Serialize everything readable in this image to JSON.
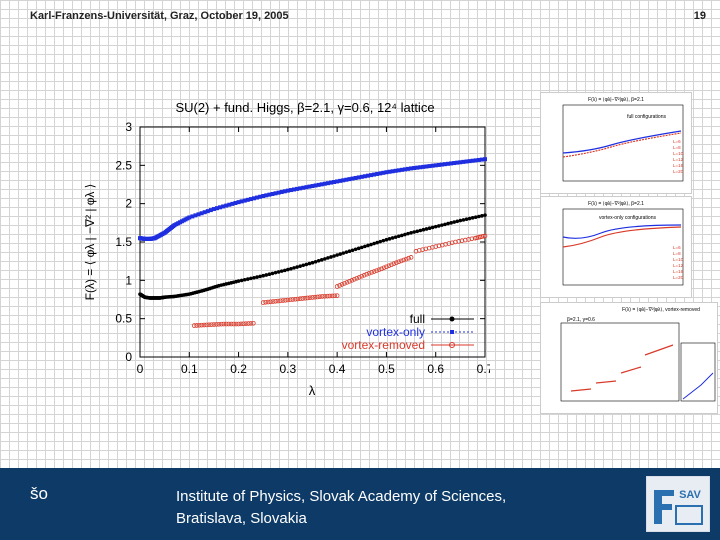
{
  "header": {
    "left": "Karl-Franzens-Universität, Graz, October 19, 2005",
    "page_number": "19"
  },
  "footer": {
    "left": "šo",
    "institute_line1": "Institute of Physics, Slovak Academy of Sciences,",
    "institute_line2": "Bratislava, Slovakia",
    "logo_text": "SAV"
  },
  "colors": {
    "full": "#000000",
    "vortex_only": "#1f2fe0",
    "vortex_removed": "#d93a2a",
    "footer": "#0d3a66"
  },
  "chart_data": {
    "type": "scatter",
    "title": "SU(2) + fund. Higgs, β=2.1, γ=0.6, 12⁴ lattice",
    "xlabel": "λ",
    "ylabel": "F(λ) = ⟨ φλ | −∇² | φλ ⟩",
    "xlim": [
      0,
      0.7
    ],
    "ylim": [
      0,
      3
    ],
    "xticks": [
      "0",
      "0.1",
      "0.2",
      "0.3",
      "0.4",
      "0.5",
      "0.6",
      "0.7"
    ],
    "yticks": [
      "0",
      "0.5",
      "1",
      "1.5",
      "2",
      "2.5",
      "3"
    ],
    "legend_position": "bottom-right",
    "series": [
      {
        "name": "full",
        "x": [
          0.0,
          0.005,
          0.01,
          0.02,
          0.03,
          0.04,
          0.05,
          0.07,
          0.1,
          0.13,
          0.16,
          0.2,
          0.25,
          0.3,
          0.35,
          0.4,
          0.45,
          0.5,
          0.55,
          0.6,
          0.65,
          0.7
        ],
        "values": [
          0.82,
          0.8,
          0.78,
          0.77,
          0.77,
          0.77,
          0.78,
          0.79,
          0.82,
          0.87,
          0.93,
          0.99,
          1.06,
          1.14,
          1.23,
          1.33,
          1.43,
          1.53,
          1.62,
          1.7,
          1.78,
          1.85
        ]
      },
      {
        "name": "vortex-only",
        "x": [
          0.0,
          0.01,
          0.02,
          0.03,
          0.05,
          0.07,
          0.1,
          0.15,
          0.2,
          0.25,
          0.3,
          0.35,
          0.4,
          0.45,
          0.5,
          0.55,
          0.6,
          0.65,
          0.7
        ],
        "values": [
          1.55,
          1.54,
          1.54,
          1.55,
          1.62,
          1.72,
          1.82,
          1.93,
          2.02,
          2.1,
          2.17,
          2.23,
          2.29,
          2.35,
          2.41,
          2.46,
          2.5,
          2.54,
          2.58
        ]
      },
      {
        "name": "vortex-removed",
        "segments": [
          {
            "x": [
              0.11,
              0.14,
              0.17,
              0.2,
              0.23
            ],
            "values": [
              0.41,
              0.42,
              0.43,
              0.43,
              0.44
            ]
          },
          {
            "x": [
              0.25,
              0.28,
              0.31,
              0.34,
              0.37,
              0.4
            ],
            "values": [
              0.71,
              0.73,
              0.75,
              0.77,
              0.79,
              0.8
            ]
          },
          {
            "x": [
              0.4,
              0.43,
              0.46,
              0.49,
              0.52,
              0.55
            ],
            "values": [
              0.92,
              1.0,
              1.08,
              1.15,
              1.23,
              1.3
            ]
          },
          {
            "x": [
              0.56,
              0.6,
              0.64,
              0.68,
              0.7
            ],
            "values": [
              1.38,
              1.44,
              1.5,
              1.55,
              1.58
            ]
          }
        ]
      }
    ]
  },
  "thumbnails": {
    "top": {
      "title": "F(λ) = ⟨φλ|−∇²|φλ⟩, β=2.1",
      "label": "full configurations",
      "legend": [
        "L=6",
        "L=8",
        "L=10",
        "L=12",
        "L=16",
        "L=20"
      ]
    },
    "middle": {
      "title": "F(λ) = ⟨φλ|−∇²|φλ⟩, β=2.1",
      "label": "vortex-only configurations",
      "legend": [
        "L=6",
        "L=8",
        "L=10",
        "L=12",
        "L=16",
        "L=20"
      ]
    },
    "bottom_title": "F(λ) = ⟨φλ|−∇²|φλ⟩, vortex-removed",
    "bottom_left_title": "β=2.1, γ=0.6"
  }
}
